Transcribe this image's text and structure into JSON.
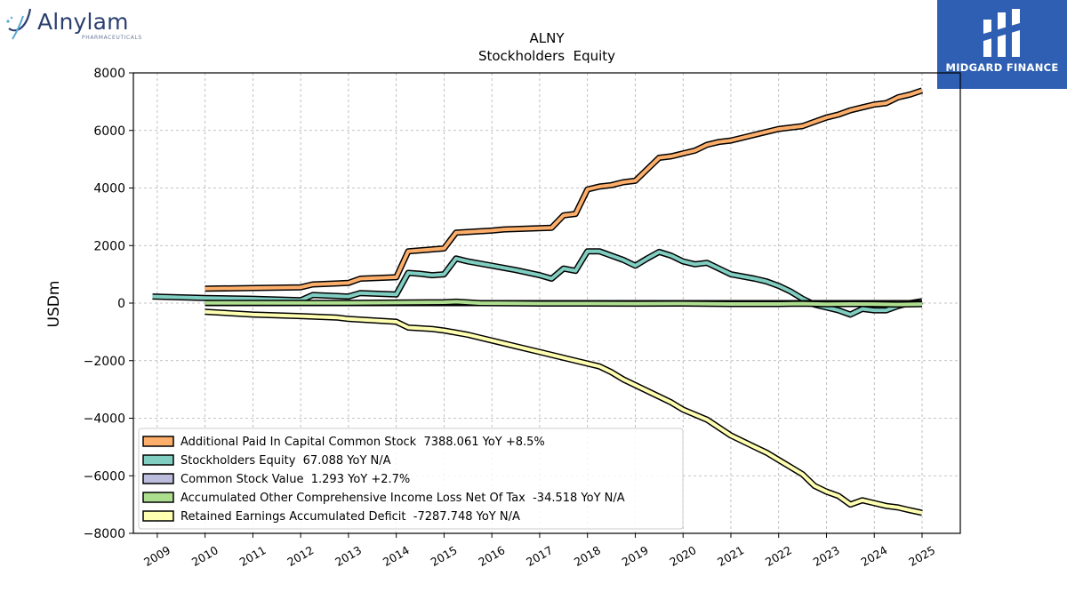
{
  "logos": {
    "left_name": "Alnylam",
    "left_sub": "PHARMACEUTICALS",
    "right_name": "MIDGARD FINANCE"
  },
  "chart_data": {
    "type": "line",
    "title": "ALNY",
    "subtitle": "Stockholders  Equity",
    "ylabel": "USDm",
    "xlabel": "",
    "ylim": [
      -8000,
      8000
    ],
    "yticks": [
      -8000,
      -6000,
      -4000,
      -2000,
      0,
      2000,
      4000,
      6000,
      8000
    ],
    "ytick_labels": [
      "−8000",
      "−6000",
      "−4000",
      "−2000",
      "0",
      "2000",
      "4000",
      "6000",
      "8000"
    ],
    "xlim": [
      2008.5,
      2025.8
    ],
    "xticks": [
      "2009",
      "2010",
      "2011",
      "2012",
      "2013",
      "2014",
      "2015",
      "2016",
      "2017",
      "2018",
      "2019",
      "2020",
      "2021",
      "2022",
      "2023",
      "2024",
      "2025"
    ],
    "grid": true,
    "legend_position": "bottom-left",
    "series": [
      {
        "name": "Additional Paid In Capital Common Stock",
        "legend": "Additional Paid In Capital Common Stock  7388.061 YoY +8.5%",
        "color": "#fdae6b",
        "x": [
          2010.0,
          2012.0,
          2012.25,
          2013.0,
          2013.25,
          2014.0,
          2014.25,
          2015.0,
          2015.25,
          2016.0,
          2016.25,
          2017.25,
          2017.5,
          2017.75,
          2018.0,
          2018.25,
          2018.5,
          2018.75,
          2019.0,
          2019.5,
          2019.75,
          2020.0,
          2020.25,
          2020.5,
          2020.75,
          2021.0,
          2021.5,
          2022.0,
          2022.5,
          2022.75,
          2023.0,
          2023.25,
          2023.5,
          2023.75,
          2024.0,
          2024.25,
          2024.5,
          2024.75,
          2025.0
        ],
        "y": [
          500,
          550,
          650,
          700,
          850,
          900,
          1800,
          1900,
          2450,
          2520,
          2560,
          2620,
          3050,
          3100,
          3950,
          4050,
          4100,
          4200,
          4250,
          5050,
          5100,
          5200,
          5300,
          5500,
          5600,
          5650,
          5850,
          6050,
          6150,
          6300,
          6450,
          6550,
          6700,
          6800,
          6900,
          6950,
          7150,
          7250,
          7388
        ]
      },
      {
        "name": "Stockholders Equity",
        "legend": "Stockholders Equity  67.088 YoY N/A",
        "color": "#80cdc1",
        "x": [
          2008.9,
          2010.0,
          2011.0,
          2012.0,
          2012.25,
          2013.0,
          2013.25,
          2014.0,
          2014.25,
          2014.5,
          2014.75,
          2015.0,
          2015.25,
          2015.5,
          2016.0,
          2016.5,
          2017.0,
          2017.25,
          2017.5,
          2017.75,
          2018.0,
          2018.25,
          2018.5,
          2018.75,
          2019.0,
          2019.25,
          2019.5,
          2019.75,
          2020.0,
          2020.25,
          2020.5,
          2020.75,
          2021.0,
          2021.5,
          2021.75,
          2022.0,
          2022.25,
          2022.5,
          2022.75,
          2023.0,
          2023.25,
          2023.5,
          2023.75,
          2024.0,
          2024.25,
          2024.5,
          2024.75,
          2025.0
        ],
        "y": [
          230,
          180,
          150,
          100,
          280,
          230,
          350,
          300,
          1050,
          1020,
          970,
          1000,
          1550,
          1450,
          1300,
          1150,
          970,
          850,
          1200,
          1120,
          1800,
          1800,
          1650,
          1500,
          1300,
          1550,
          1780,
          1650,
          1450,
          1350,
          1400,
          1200,
          1000,
          850,
          750,
          600,
          400,
          150,
          -50,
          -150,
          -250,
          -400,
          -200,
          -250,
          -250,
          -100,
          0,
          67
        ]
      },
      {
        "name": "Common Stock Value",
        "legend": "Common Stock Value  1.293 YoY +2.7%",
        "color": "#bcbddc",
        "x": [
          2010.0,
          2011.0,
          2012.0,
          2013.0,
          2014.0,
          2015.0,
          2016.0,
          2017.0,
          2018.0,
          2019.0,
          2020.0,
          2021.0,
          2022.0,
          2023.0,
          2024.0,
          2025.0
        ],
        "y": [
          0.4,
          0.4,
          0.5,
          0.6,
          0.7,
          0.8,
          0.9,
          1.0,
          1.0,
          1.1,
          1.1,
          1.2,
          1.2,
          1.2,
          1.26,
          1.293
        ]
      },
      {
        "name": "Accumulated Other Comprehensive Income Loss Net Of Tax",
        "legend": "Accumulated Other Comprehensive Income Loss Net Of Tax  -34.518 YoY N/A",
        "color": "#addd8e",
        "x": [
          2010.0,
          2011.0,
          2012.0,
          2013.0,
          2014.0,
          2015.0,
          2015.25,
          2015.75,
          2016.5,
          2017.0,
          2018.0,
          2019.0,
          2020.0,
          2021.0,
          2022.0,
          2022.5,
          2023.0,
          2023.5,
          2024.0,
          2024.5,
          2025.0
        ],
        "y": [
          5,
          5,
          5,
          10,
          20,
          30,
          50,
          0,
          -10,
          -15,
          -15,
          -20,
          -15,
          -30,
          -30,
          -20,
          -40,
          -30,
          -35,
          -50,
          -35
        ]
      },
      {
        "name": "Retained Earnings Accumulated Deficit",
        "legend": "Retained Earnings Accumulated Deficit  -7287.748 YoY N/A",
        "color": "#ffffb2",
        "x": [
          2010.0,
          2011.0,
          2012.0,
          2012.75,
          2013.0,
          2013.5,
          2014.0,
          2014.25,
          2014.75,
          2015.0,
          2015.5,
          2016.0,
          2016.5,
          2017.0,
          2017.5,
          2018.0,
          2018.25,
          2018.5,
          2018.75,
          2019.0,
          2019.5,
          2019.75,
          2020.0,
          2020.5,
          2021.0,
          2021.5,
          2021.75,
          2022.0,
          2022.25,
          2022.5,
          2022.75,
          2023.0,
          2023.25,
          2023.5,
          2023.75,
          2024.0,
          2024.25,
          2024.5,
          2024.75,
          2025.0
        ],
        "y": [
          -300,
          -400,
          -450,
          -500,
          -550,
          -600,
          -650,
          -850,
          -900,
          -950,
          -1100,
          -1300,
          -1500,
          -1700,
          -1900,
          -2100,
          -2200,
          -2400,
          -2650,
          -2850,
          -3250,
          -3450,
          -3700,
          -4050,
          -4600,
          -5000,
          -5200,
          -5450,
          -5700,
          -5950,
          -6350,
          -6550,
          -6700,
          -7000,
          -6850,
          -6950,
          -7050,
          -7100,
          -7200,
          -7288
        ]
      }
    ]
  }
}
